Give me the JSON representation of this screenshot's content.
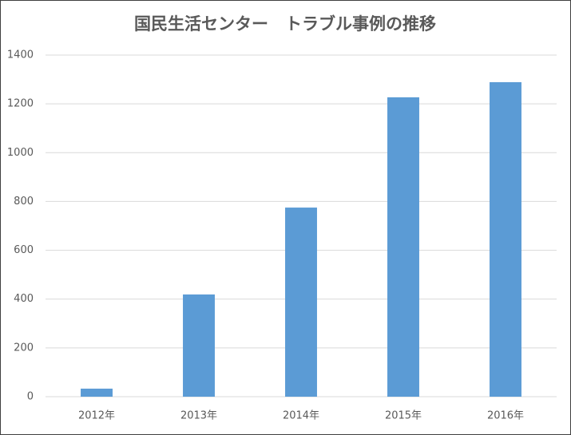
{
  "chart_data": {
    "type": "bar",
    "title": "国民生活センター　トラブル事例の推移",
    "categories": [
      "2012年",
      "2013年",
      "2014年",
      "2015年",
      "2016年"
    ],
    "values": [
      33,
      419,
      775,
      1227,
      1289
    ],
    "color": "#5b9bd5",
    "ylim": [
      0,
      1400
    ],
    "yticks": [
      0,
      200,
      400,
      600,
      800,
      1000,
      1200,
      1400
    ],
    "grid": true
  }
}
